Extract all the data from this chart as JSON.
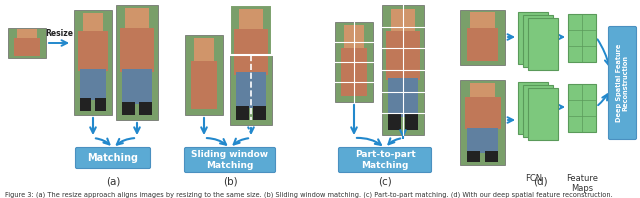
{
  "fig_width": 6.4,
  "fig_height": 1.98,
  "dpi": 100,
  "bg_color": "#ffffff",
  "caption": "Figure 3: (a) The resize approach aligns images by resizing to the same size. (b) Sliding window matching. (c) Part-to-part matching. (d) With our deep spatial feature reconstruction.",
  "arrow_color": "#2288CC",
  "box_color": "#5BAAD4",
  "box_edge_color": "#4A90C0",
  "text_color": "#ffffff",
  "green_face": "#7DC87D",
  "green_edge": "#5A9A5A",
  "green_dark_face": "#5A9A5A",
  "caption_fontsize": 4.8,
  "subfig_fontsize": 7.5,
  "label_fontsize": 6.5,
  "skin_color": "#D4956A",
  "shirt_color": "#C8805A",
  "bg_person": "#A8C898",
  "jeans_color": "#6888A8",
  "dark_color": "#334455"
}
